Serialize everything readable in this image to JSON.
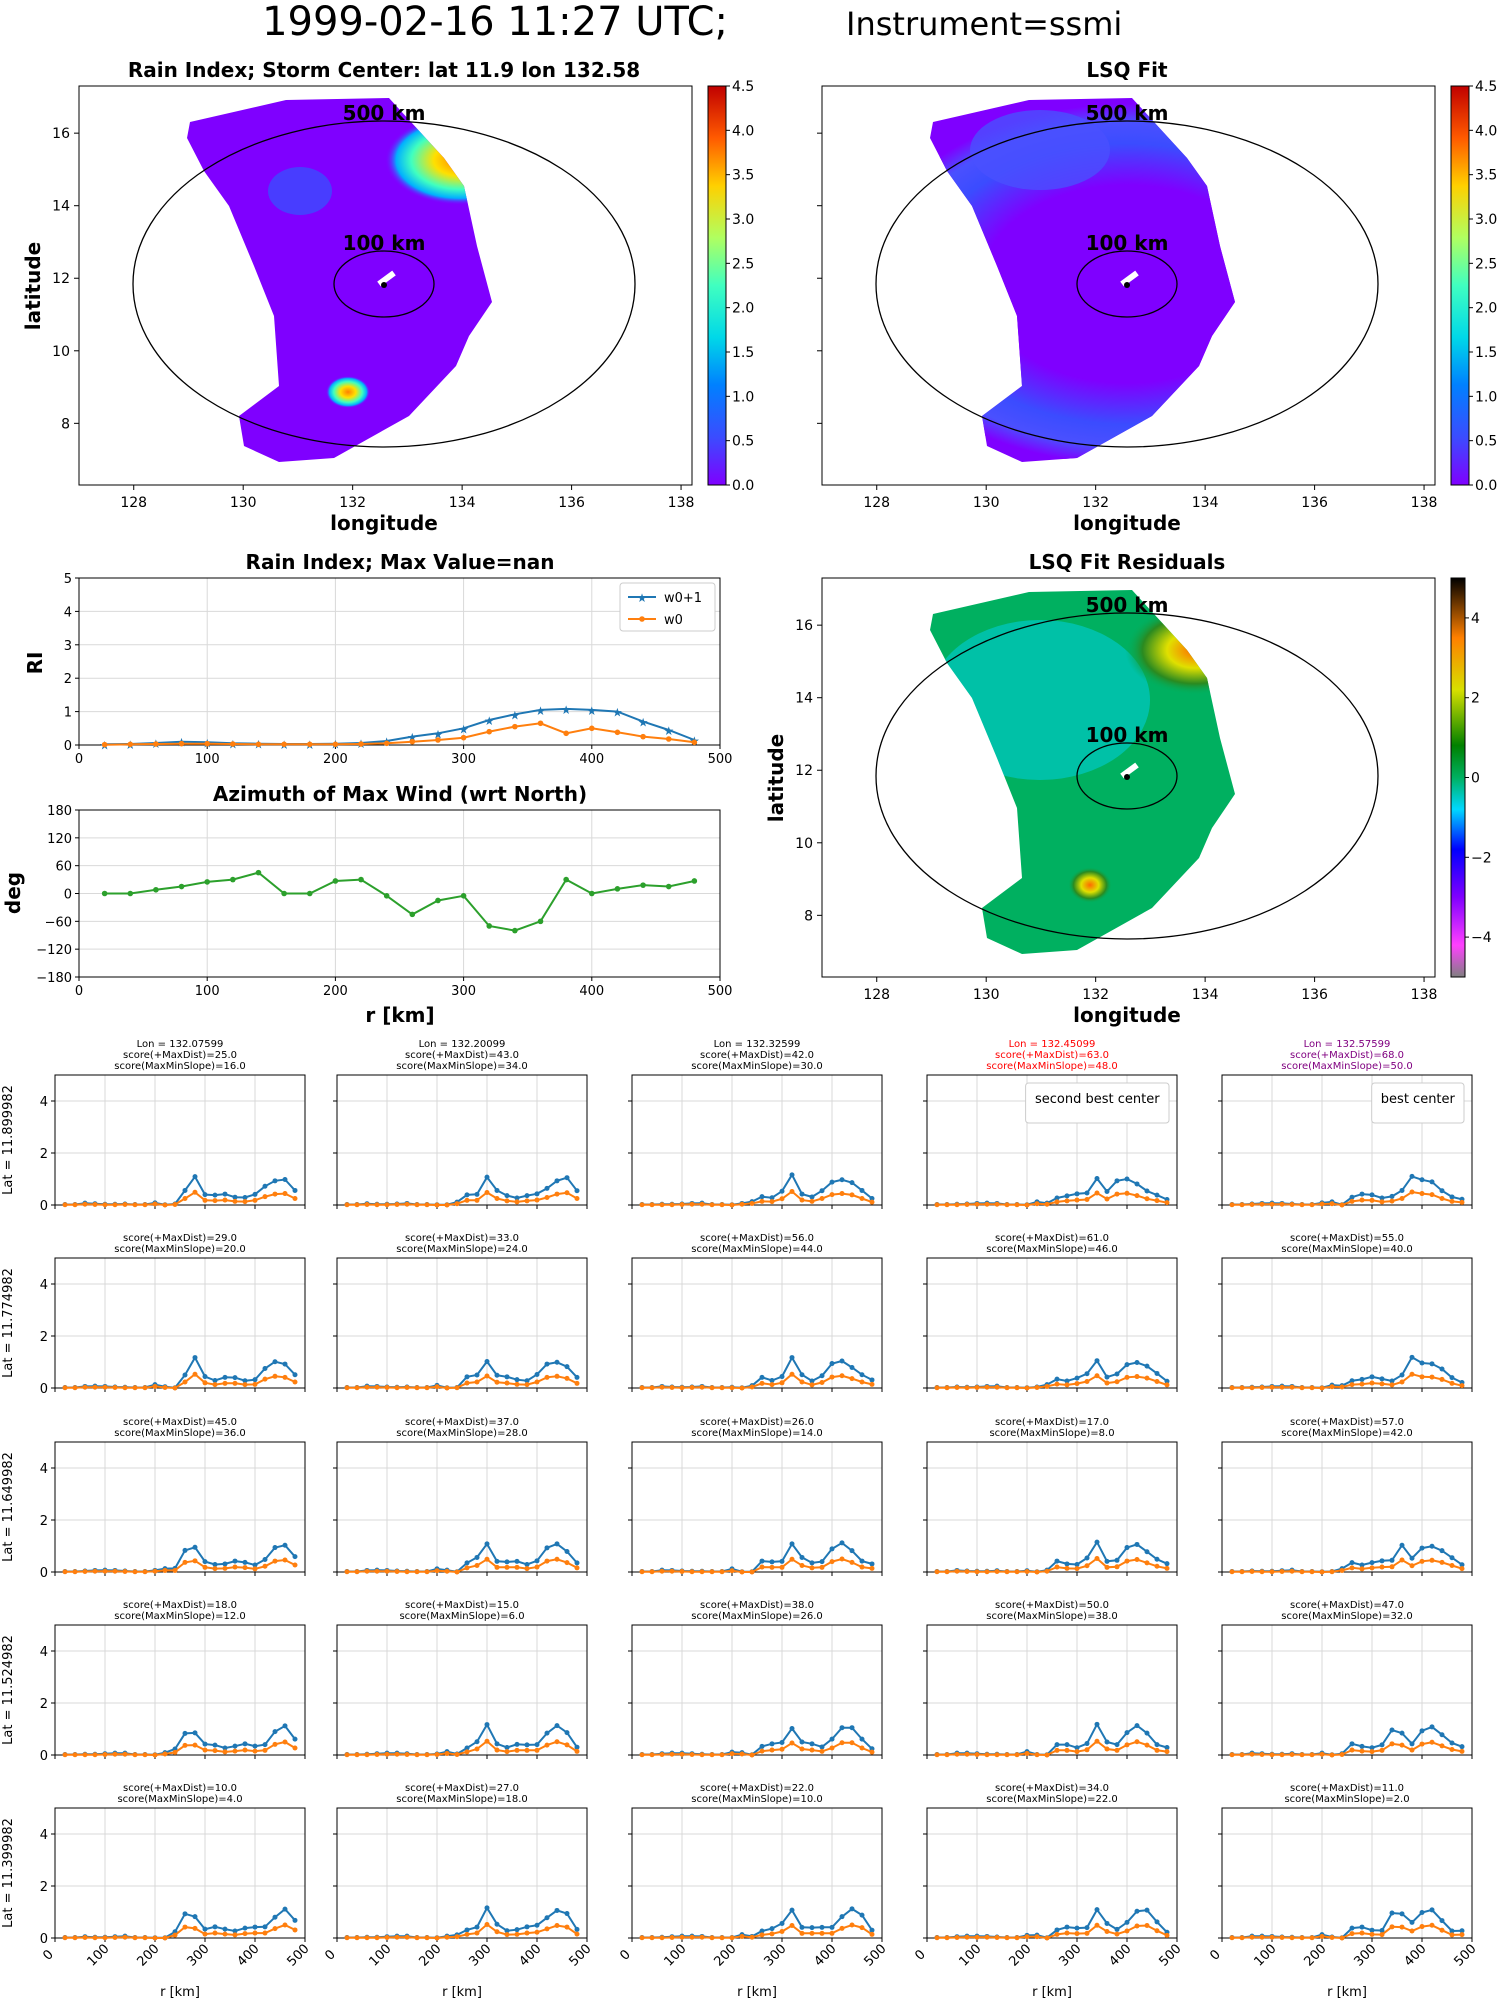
{
  "figure": {
    "title_main": "1999-02-16 11:27 UTC;",
    "title_instrument": "Instrument=ssmi"
  },
  "map_panels": {
    "rain_title": "Rain Index; Storm Center: lat 11.9 lon 132.58",
    "lsq_title": "LSQ Fit",
    "resid_title": "LSQ Fit Residuals",
    "xlabel": "longitude",
    "ylabel": "latitude",
    "ring_500": "500 km",
    "ring_100": "100 km",
    "xticks": [
      "128",
      "130",
      "132",
      "134",
      "136",
      "138"
    ],
    "yticks": [
      "8",
      "10",
      "12",
      "14",
      "16"
    ],
    "cbar_ticks": [
      "0.0",
      "0.5",
      "1.0",
      "1.5",
      "2.0",
      "2.5",
      "3.0",
      "3.5",
      "4.0",
      "4.5"
    ],
    "resid_cbar_ticks": [
      "−4",
      "−2",
      "0",
      "2",
      "4"
    ]
  },
  "chart_data": [
    {
      "type": "line",
      "title": "Rain Index; Max Value=nan",
      "xlabel": "",
      "ylabel": "RI",
      "ylim": [
        0,
        5
      ],
      "xlim": [
        0,
        500
      ],
      "xticks": [
        "0",
        "100",
        "200",
        "300",
        "400",
        "500"
      ],
      "yticks": [
        "0",
        "1",
        "2",
        "3",
        "4",
        "5"
      ],
      "grid": true,
      "legend": "top-right",
      "x": [
        20,
        40,
        60,
        80,
        100,
        120,
        140,
        160,
        180,
        200,
        220,
        240,
        260,
        280,
        300,
        320,
        340,
        360,
        380,
        400,
        420,
        440,
        460,
        480
      ],
      "series": [
        {
          "name": "w0+1",
          "color": "#1f77b4",
          "marker": "star",
          "values": [
            0.02,
            0.03,
            0.06,
            0.1,
            0.08,
            0.05,
            0.04,
            0.03,
            0.03,
            0.04,
            0.06,
            0.12,
            0.25,
            0.35,
            0.5,
            0.75,
            0.92,
            1.05,
            1.08,
            1.05,
            1.0,
            0.7,
            0.45,
            0.15
          ]
        },
        {
          "name": "w0",
          "color": "#ff7f0e",
          "marker": "dot",
          "values": [
            0.01,
            0.02,
            0.03,
            0.04,
            0.04,
            0.03,
            0.02,
            0.02,
            0.02,
            0.02,
            0.03,
            0.05,
            0.1,
            0.15,
            0.22,
            0.4,
            0.55,
            0.65,
            0.35,
            0.5,
            0.38,
            0.25,
            0.18,
            0.08
          ]
        }
      ]
    },
    {
      "type": "line",
      "title": "Azimuth of Max Wind (wrt North)",
      "xlabel": "r [km]",
      "ylabel": "deg",
      "ylim": [
        -180,
        180
      ],
      "xlim": [
        0,
        500
      ],
      "xticks": [
        "0",
        "100",
        "200",
        "300",
        "400",
        "500"
      ],
      "yticks": [
        "−180",
        "−120",
        "−60",
        "0",
        "60",
        "120",
        "180"
      ],
      "grid": true,
      "x": [
        20,
        40,
        60,
        80,
        100,
        120,
        140,
        160,
        180,
        200,
        220,
        240,
        260,
        280,
        300,
        320,
        340,
        360,
        380,
        400,
        420,
        440,
        460,
        480
      ],
      "series": [
        {
          "color": "#2ca02c",
          "values": [
            0,
            0,
            8,
            15,
            25,
            30,
            45,
            0,
            0,
            27,
            30,
            -5,
            -45,
            -15,
            -5,
            -70,
            -80,
            -60,
            30,
            0,
            10,
            18,
            15,
            27
          ]
        }
      ]
    },
    {
      "type": "line",
      "grid_of_small_multiples": "5x5",
      "xlabel": "r [km]",
      "xticks": [
        "0",
        "100",
        "200",
        "300",
        "400",
        "500"
      ],
      "yticks": [
        "0",
        "2",
        "4"
      ],
      "ylim": [
        0,
        5
      ],
      "xlim": [
        0,
        500
      ],
      "row_labels": [
        "Lat = 11.899982",
        "Lat = 11.774982",
        "Lat = 11.649982",
        "Lat = 11.524982",
        "Lat = 11.399982"
      ],
      "col_lon_labels": [
        "Lon = 132.07599",
        "Lon = 132.20099",
        "Lon = 132.32599",
        "Lon = 132.45099",
        "Lon = 132.57599"
      ],
      "x": [
        20,
        40,
        60,
        80,
        100,
        120,
        140,
        160,
        180,
        200,
        220,
        240,
        260,
        280,
        300,
        320,
        340,
        360,
        380,
        400,
        420,
        440,
        460,
        480
      ],
      "panels": [
        {
          "score_max": "score(+MaxDist)=25.0",
          "score_slope": "score(MaxMinSlope)=16.0",
          "title_color": "#000000",
          "peaks": [
            280,
            450
          ]
        },
        {
          "score_max": "score(+MaxDist)=43.0",
          "score_slope": "score(MaxMinSlope)=34.0",
          "title_color": "#000000",
          "peaks": [
            300,
            450
          ]
        },
        {
          "score_max": "score(+MaxDist)=42.0",
          "score_slope": "score(MaxMinSlope)=30.0",
          "title_color": "#000000",
          "peaks": [
            320,
            420
          ]
        },
        {
          "score_max": "score(+MaxDist)=63.0",
          "score_slope": "score(MaxMinSlope)=48.0",
          "title_color": "#ff0000",
          "peaks": [
            340,
            400
          ],
          "legend": "second best center"
        },
        {
          "score_max": "score(+MaxDist)=68.0",
          "score_slope": "score(MaxMinSlope)=50.0",
          "title_color": "#800080",
          "peaks": [
            380,
            400
          ],
          "legend": "best center"
        },
        {
          "score_max": "score(+MaxDist)=29.0",
          "score_slope": "score(MaxMinSlope)=20.0",
          "title_color": "#000000",
          "peaks": [
            280,
            450
          ]
        },
        {
          "score_max": "score(+MaxDist)=33.0",
          "score_slope": "score(MaxMinSlope)=24.0",
          "title_color": "#000000",
          "peaks": [
            300,
            440
          ]
        },
        {
          "score_max": "score(+MaxDist)=56.0",
          "score_slope": "score(MaxMinSlope)=44.0",
          "title_color": "#000000",
          "peaks": [
            320,
            420
          ]
        },
        {
          "score_max": "score(+MaxDist)=61.0",
          "score_slope": "score(MaxMinSlope)=46.0",
          "title_color": "#000000",
          "peaks": [
            340,
            420
          ]
        },
        {
          "score_max": "score(+MaxDist)=55.0",
          "score_slope": "score(MaxMinSlope)=40.0",
          "title_color": "#000000",
          "peaks": [
            380,
            410
          ]
        },
        {
          "score_max": "score(+MaxDist)=45.0",
          "score_slope": "score(MaxMinSlope)=36.0",
          "title_color": "#000000",
          "peaks": [
            270,
            460
          ]
        },
        {
          "score_max": "score(+MaxDist)=37.0",
          "score_slope": "score(MaxMinSlope)=28.0",
          "title_color": "#000000",
          "peaks": [
            300,
            440
          ]
        },
        {
          "score_max": "score(+MaxDist)=26.0",
          "score_slope": "score(MaxMinSlope)=14.0",
          "title_color": "#000000",
          "peaks": [
            320,
            420
          ]
        },
        {
          "score_max": "score(+MaxDist)=17.0",
          "score_slope": "score(MaxMinSlope)=8.0",
          "title_color": "#000000",
          "peaks": [
            340,
            420
          ]
        },
        {
          "score_max": "score(+MaxDist)=57.0",
          "score_slope": "score(MaxMinSlope)=42.0",
          "title_color": "#000000",
          "peaks": [
            360,
            420
          ]
        },
        {
          "score_max": "score(+MaxDist)=18.0",
          "score_slope": "score(MaxMinSlope)=12.0",
          "title_color": "#000000",
          "peaks": [
            270,
            460
          ]
        },
        {
          "score_max": "score(+MaxDist)=15.0",
          "score_slope": "score(MaxMinSlope)=6.0",
          "title_color": "#000000",
          "peaks": [
            300,
            440
          ]
        },
        {
          "score_max": "score(+MaxDist)=38.0",
          "score_slope": "score(MaxMinSlope)=26.0",
          "title_color": "#000000",
          "peaks": [
            320,
            430
          ]
        },
        {
          "score_max": "score(+MaxDist)=50.0",
          "score_slope": "score(MaxMinSlope)=38.0",
          "title_color": "#000000",
          "peaks": [
            340,
            420
          ]
        },
        {
          "score_max": "score(+MaxDist)=47.0",
          "score_slope": "score(MaxMinSlope)=32.0",
          "title_color": "#000000",
          "peaks": [
            350,
            420
          ]
        },
        {
          "score_max": "score(+MaxDist)=10.0",
          "score_slope": "score(MaxMinSlope)=4.0",
          "title_color": "#000000",
          "peaks": [
            270,
            460
          ]
        },
        {
          "score_max": "score(+MaxDist)=27.0",
          "score_slope": "score(MaxMinSlope)=18.0",
          "title_color": "#000000",
          "peaks": [
            300,
            440
          ]
        },
        {
          "score_max": "score(+MaxDist)=22.0",
          "score_slope": "score(MaxMinSlope)=10.0",
          "title_color": "#000000",
          "peaks": [
            320,
            440
          ]
        },
        {
          "score_max": "score(+MaxDist)=34.0",
          "score_slope": "score(MaxMinSlope)=22.0",
          "title_color": "#000000",
          "peaks": [
            340,
            430
          ]
        },
        {
          "score_max": "score(+MaxDist)=11.0",
          "score_slope": "score(MaxMinSlope)=2.0",
          "title_color": "#000000",
          "peaks": [
            350,
            410
          ]
        }
      ]
    }
  ]
}
